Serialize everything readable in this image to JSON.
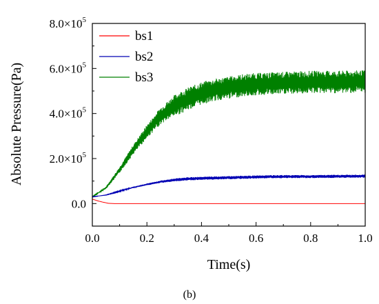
{
  "chart_data": {
    "type": "line",
    "xlabel": "Time(s)",
    "ylabel": "Absolute Pressure(Pa)",
    "xlim": [
      0,
      1.0
    ],
    "ylim": [
      -100000,
      800000
    ],
    "x_ticks": [
      "0.0",
      "0.2",
      "0.4",
      "0.6",
      "0.8",
      "1.0"
    ],
    "y_ticks": [
      {
        "mant": "0.0",
        "exp": ""
      },
      {
        "mant": "2.0×10",
        "exp": "5"
      },
      {
        "mant": "4.0×10",
        "exp": "5"
      },
      {
        "mant": "6.0×10",
        "exp": "5"
      },
      {
        "mant": "8.0×10",
        "exp": "5"
      }
    ],
    "legend_position": "top-left",
    "grid": false,
    "series": [
      {
        "name": "bs1",
        "color": "#ff0000",
        "x": [
          0,
          0.02,
          0.04,
          0.06,
          0.08,
          0.1,
          0.2,
          0.4,
          0.6,
          0.8,
          1.0
        ],
        "y": [
          20000,
          12000,
          6000,
          1000,
          0,
          0,
          0,
          0,
          0,
          0,
          0
        ],
        "oscillation_amplitude": 0
      },
      {
        "name": "bs2",
        "color": "#0000b4",
        "x": [
          0,
          0.05,
          0.1,
          0.15,
          0.2,
          0.25,
          0.3,
          0.35,
          0.4,
          0.5,
          0.6,
          0.7,
          0.8,
          0.9,
          1.0
        ],
        "y": [
          30000,
          38000,
          55000,
          72000,
          85000,
          97000,
          105000,
          110000,
          112000,
          115000,
          118000,
          120000,
          120000,
          121000,
          122000
        ],
        "oscillation_amplitude": 7000
      },
      {
        "name": "bs3",
        "color": "#008000",
        "x": [
          0,
          0.05,
          0.1,
          0.15,
          0.2,
          0.25,
          0.3,
          0.35,
          0.4,
          0.45,
          0.5,
          0.55,
          0.6,
          0.7,
          0.8,
          0.9,
          1.0
        ],
        "y": [
          30000,
          70000,
          150000,
          240000,
          320000,
          390000,
          435000,
          465000,
          490000,
          505000,
          515000,
          525000,
          530000,
          535000,
          540000,
          540000,
          542000
        ],
        "oscillation_amplitude": 50000
      }
    ]
  },
  "caption": "(b)"
}
